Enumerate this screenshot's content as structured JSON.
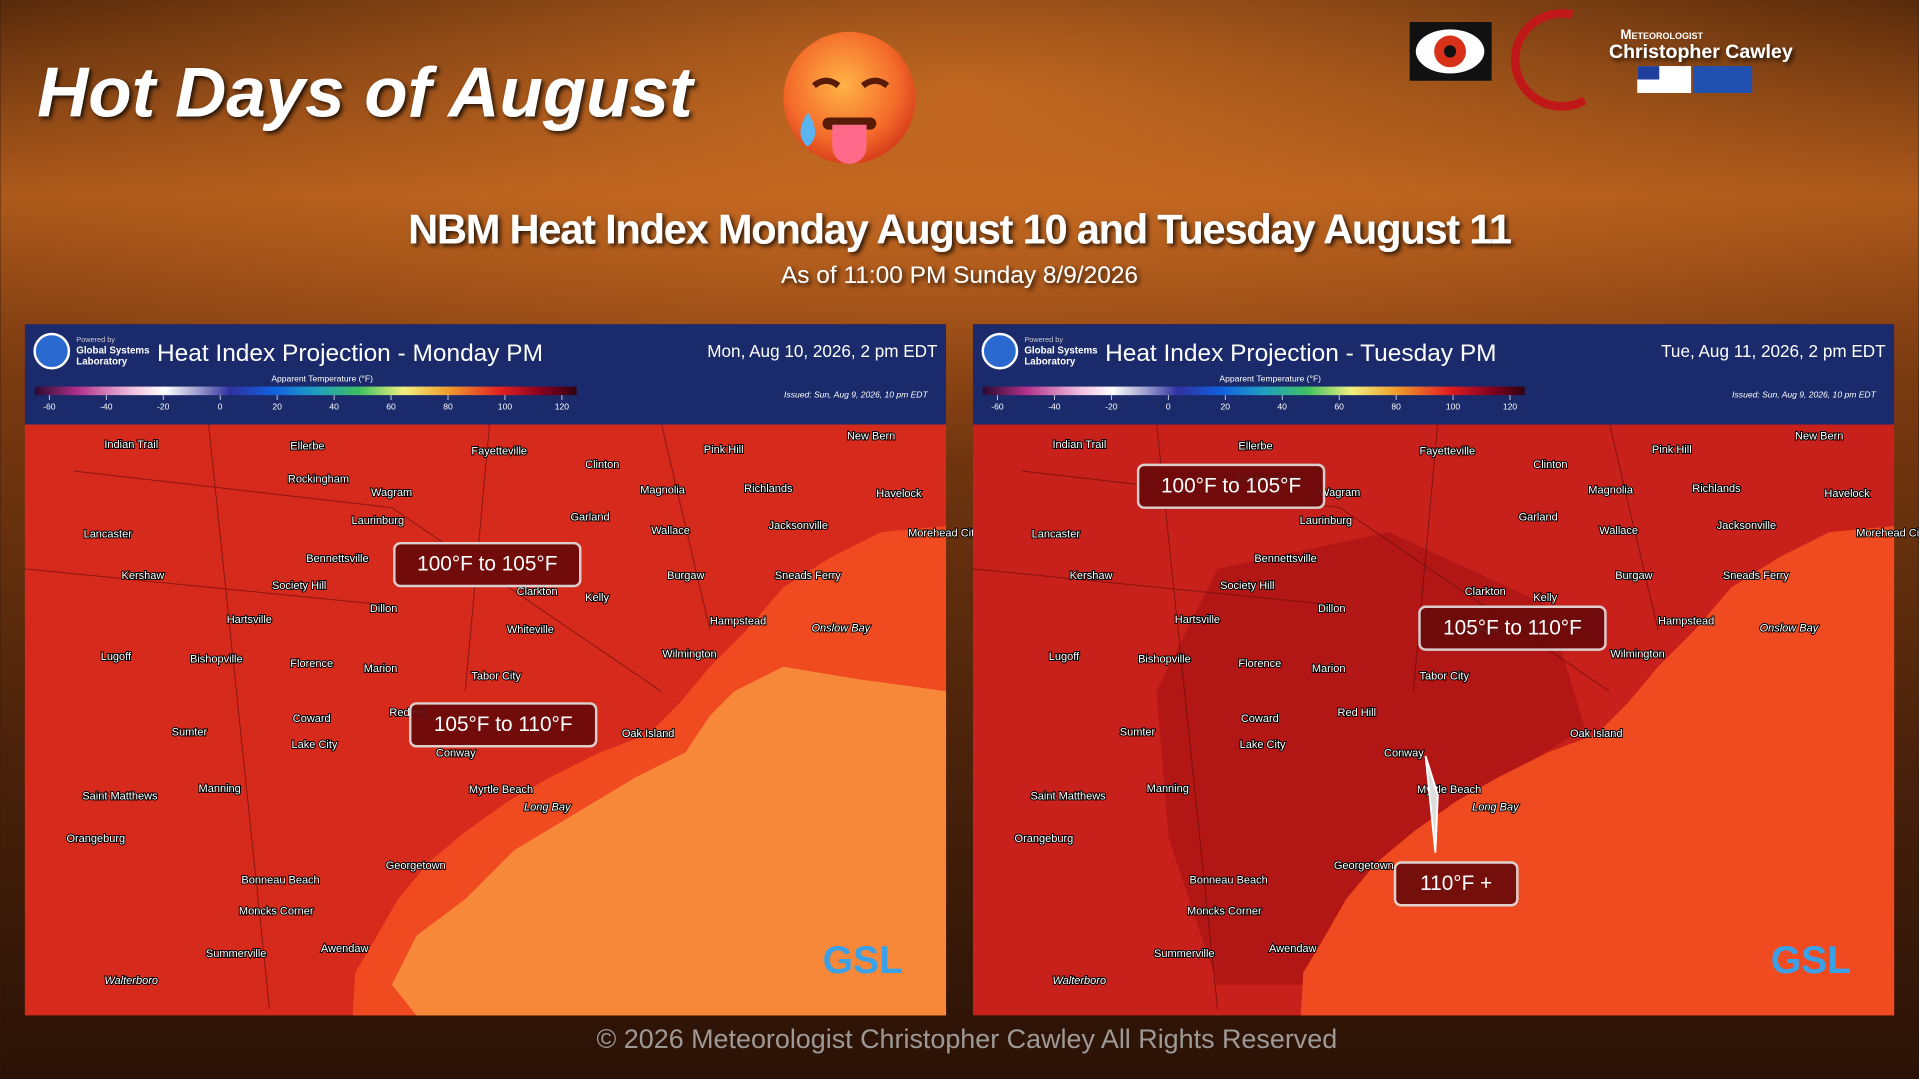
{
  "header": {
    "title": "Hot Days of August",
    "heading": "NBM Heat Index Monday August 10 and Tuesday August 11",
    "subheading": "As of 11:00 PM Sunday 8/9/2026",
    "brand_top": "Meteorologist",
    "brand_name": "Christopher Cawley"
  },
  "panels": [
    {
      "title": "Heat Index Projection - Monday PM",
      "date": "Mon, Aug 10, 2026, 2 pm EDT",
      "issued": "Issued: Sun, Aug 9, 2026, 10 pm EDT",
      "labels": [
        "100°F to 105°F",
        "105°F to 110°F"
      ]
    },
    {
      "title": "Heat Index Projection - Tuesday PM",
      "date": "Tue, Aug 11, 2026, 2 pm EDT",
      "issued": "Issued: Sun, Aug 9, 2026, 10 pm EDT",
      "labels": [
        "100°F to 105°F",
        "105°F to 110°F",
        "110°F +"
      ]
    }
  ],
  "org": {
    "powered": "Powered by",
    "name_1": "Global Systems",
    "name_2": "Laboratory",
    "logo": "GSL"
  },
  "colorbar": {
    "label": "Apparent Temperature (°F)",
    "range": [
      -60,
      120
    ],
    "ticks": [
      -60,
      -40,
      -20,
      0,
      20,
      40,
      60,
      80,
      100,
      120
    ]
  },
  "cities": [
    "Indian Trail",
    "Ellerbe",
    "Fayetteville",
    "Clinton",
    "Pink Hill",
    "New Bern",
    "Rockingham",
    "Wagram",
    "Magnolia",
    "Richlands",
    "Havelock",
    "Laurinburg",
    "Garland",
    "Wallace",
    "Jacksonville",
    "Morehead City",
    "Lancaster",
    "Bennettsville",
    "Kershaw",
    "Society Hill",
    "Clarkton",
    "Kelly",
    "Burgaw",
    "Sneads Ferry",
    "Dillon",
    "Hartsville",
    "Whiteville",
    "Hampstead",
    "Lugoff",
    "Bishopville",
    "Florence",
    "Marion",
    "Wilmington",
    "Tabor City",
    "Coward",
    "Red Hill",
    "Sumter",
    "Lake City",
    "Oak Island",
    "Conway",
    "Manning",
    "Saint Matthews",
    "Myrtle Beach",
    "Long Bay",
    "Orangeburg",
    "Georgetown",
    "Bonneau Beach",
    "Moncks Corner",
    "Summerville",
    "Awendaw",
    "Walterboro",
    "Onslow Bay"
  ],
  "footer": "© 2026 Meteorologist Christopher Cawley All Rights Reserved"
}
